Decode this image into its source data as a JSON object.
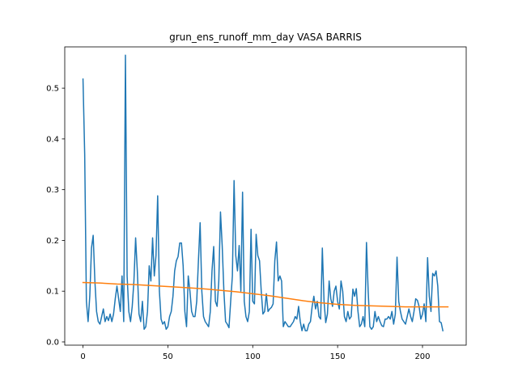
{
  "chart_data": {
    "type": "line",
    "title": "grun_ens_runoff_mm_day VASA BARRIS",
    "xlabel": "",
    "ylabel": "",
    "xlim": [
      -10.75,
      225.75
    ],
    "ylim": [
      -0.0064,
      0.5814
    ],
    "x_ticks": [
      0,
      50,
      100,
      150,
      200
    ],
    "y_ticks": [
      0.0,
      0.1,
      0.2,
      0.3,
      0.4,
      0.5
    ],
    "y_tick_labels": [
      "0.0",
      "0.1",
      "0.2",
      "0.3",
      "0.4",
      "0.5"
    ],
    "grid": false,
    "series": [
      {
        "color": "#1f77b4",
        "values": [
          0.518,
          0.37,
          0.08,
          0.04,
          0.09,
          0.185,
          0.21,
          0.12,
          0.06,
          0.04,
          0.035,
          0.05,
          0.065,
          0.04,
          0.05,
          0.042,
          0.055,
          0.04,
          0.055,
          0.085,
          0.11,
          0.085,
          0.06,
          0.13,
          0.04,
          0.565,
          0.13,
          0.06,
          0.04,
          0.07,
          0.12,
          0.205,
          0.14,
          0.055,
          0.04,
          0.08,
          0.025,
          0.03,
          0.06,
          0.15,
          0.12,
          0.205,
          0.13,
          0.17,
          0.288,
          0.1,
          0.045,
          0.035,
          0.04,
          0.025,
          0.03,
          0.05,
          0.06,
          0.09,
          0.14,
          0.16,
          0.168,
          0.195,
          0.195,
          0.15,
          0.06,
          0.03,
          0.13,
          0.1,
          0.06,
          0.05,
          0.05,
          0.08,
          0.16,
          0.235,
          0.1,
          0.05,
          0.04,
          0.035,
          0.03,
          0.06,
          0.14,
          0.188,
          0.08,
          0.07,
          0.12,
          0.256,
          0.19,
          0.1,
          0.04,
          0.035,
          0.028,
          0.08,
          0.13,
          0.318,
          0.17,
          0.14,
          0.19,
          0.1,
          0.295,
          0.08,
          0.05,
          0.04,
          0.06,
          0.222,
          0.08,
          0.075,
          0.212,
          0.17,
          0.16,
          0.1,
          0.055,
          0.06,
          0.095,
          0.06,
          0.065,
          0.068,
          0.075,
          0.16,
          0.197,
          0.12,
          0.13,
          0.12,
          0.03,
          0.04,
          0.035,
          0.03,
          0.03,
          0.035,
          0.04,
          0.05,
          0.045,
          0.07,
          0.04,
          0.022,
          0.035,
          0.022,
          0.022,
          0.035,
          0.04,
          0.07,
          0.09,
          0.065,
          0.08,
          0.05,
          0.045,
          0.185,
          0.08,
          0.038,
          0.055,
          0.12,
          0.085,
          0.07,
          0.1,
          0.11,
          0.08,
          0.065,
          0.12,
          0.1,
          0.05,
          0.04,
          0.06,
          0.045,
          0.05,
          0.104,
          0.09,
          0.105,
          0.06,
          0.03,
          0.035,
          0.05,
          0.03,
          0.196,
          0.1,
          0.03,
          0.025,
          0.03,
          0.06,
          0.04,
          0.05,
          0.04,
          0.032,
          0.03,
          0.045,
          0.045,
          0.05,
          0.045,
          0.06,
          0.035,
          0.055,
          0.167,
          0.08,
          0.06,
          0.045,
          0.04,
          0.035,
          0.05,
          0.065,
          0.05,
          0.04,
          0.06,
          0.085,
          0.082,
          0.07,
          0.045,
          0.055,
          0.075,
          0.04,
          0.166,
          0.09,
          0.06,
          0.135,
          0.13,
          0.14,
          0.11,
          0.04,
          0.038,
          0.022
        ]
      },
      {
        "color": "#ff7f0e",
        "values_at": [
          0,
          10,
          20,
          30,
          40,
          50,
          60,
          70,
          80,
          90,
          100,
          110,
          120,
          130,
          140,
          150,
          160,
          170,
          180,
          190,
          200,
          210,
          215
        ],
        "values": [
          0.117,
          0.116,
          0.114,
          0.113,
          0.111,
          0.109,
          0.107,
          0.105,
          0.102,
          0.099,
          0.095,
          0.091,
          0.086,
          0.081,
          0.077,
          0.074,
          0.072,
          0.071,
          0.07,
          0.069,
          0.069,
          0.069,
          0.069
        ]
      }
    ]
  }
}
